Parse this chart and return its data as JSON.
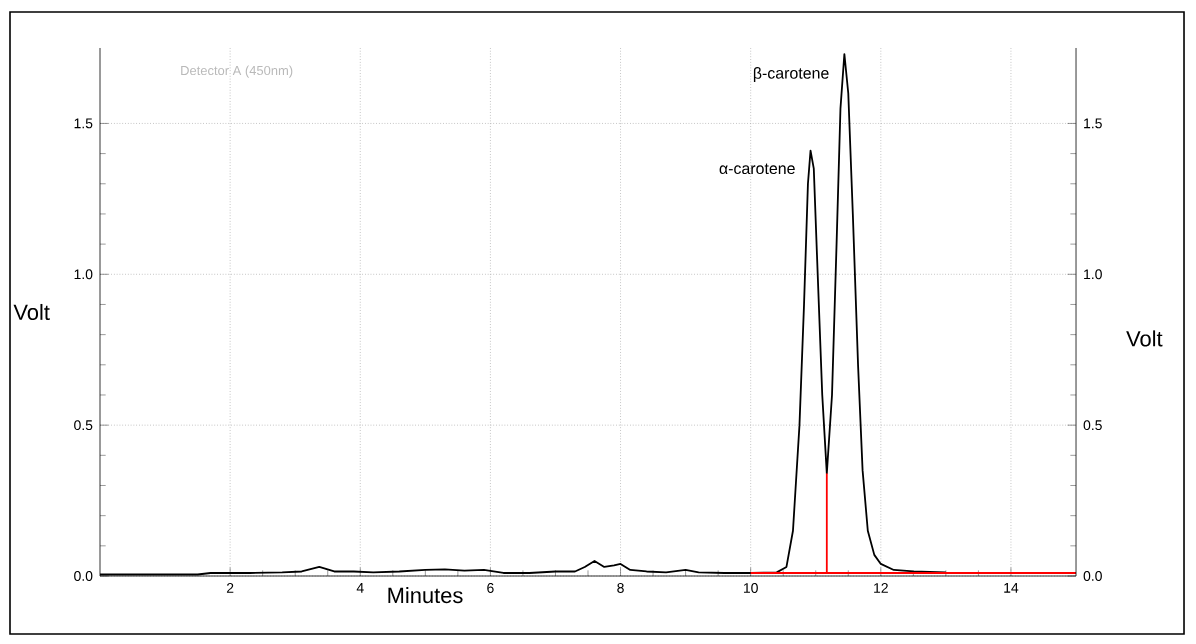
{
  "chart_data": {
    "type": "line",
    "xlabel": "Minutes",
    "ylabel": "Volt",
    "y2label": "Volt",
    "annotations": [
      "Detector A (450nm)",
      {
        "text": "α-carotene",
        "x": 10.92,
        "y": 1.41
      },
      {
        "text": "β-carotene",
        "x": 11.44,
        "y": 1.73
      }
    ],
    "xlim": [
      0,
      15
    ],
    "xticks": [
      2,
      4,
      6,
      8,
      10,
      12,
      14
    ],
    "ylim": [
      0,
      1.75
    ],
    "yticks": [
      {
        "value": 0,
        "label": "0.0"
      },
      {
        "value": 0.5,
        "label": "0.5"
      },
      {
        "value": 1,
        "label": "1.0"
      },
      {
        "value": 1.5,
        "label": "1.5"
      }
    ],
    "y2lim": [
      0,
      1.75
    ],
    "y2ticks": [
      {
        "value": 0,
        "label": "0.0"
      },
      {
        "value": 0.5,
        "label": "0.5"
      },
      {
        "value": 1,
        "label": "1.0"
      },
      {
        "value": 1.5,
        "label": "1.5"
      }
    ],
    "grid": true,
    "series": [
      {
        "color": "#000000",
        "x": [
          0,
          0.5,
          1,
          1.5,
          1.7,
          1.9,
          2.3,
          2.8,
          3.1,
          3.37,
          3.6,
          3.9,
          4.2,
          4.6,
          5,
          5.3,
          5.6,
          5.9,
          6.2,
          6.6,
          7,
          7.3,
          7.45,
          7.6,
          7.75,
          7.9,
          8.0,
          8.15,
          8.4,
          8.7,
          9.0,
          9.2,
          9.6,
          10,
          10.4,
          10.55,
          10.65,
          10.75,
          10.82,
          10.88,
          10.92,
          10.97,
          11.03,
          11.1,
          11.17,
          11.25,
          11.32,
          11.38,
          11.44,
          11.5,
          11.57,
          11.65,
          11.72,
          11.8,
          11.9,
          12.0,
          12.2,
          12.5,
          13.0
        ],
        "values": [
          0.005,
          0.005,
          0.005,
          0.005,
          0.01,
          0.01,
          0.01,
          0.012,
          0.015,
          0.03,
          0.015,
          0.015,
          0.012,
          0.015,
          0.02,
          0.022,
          0.018,
          0.02,
          0.01,
          0.01,
          0.015,
          0.015,
          0.03,
          0.05,
          0.03,
          0.035,
          0.04,
          0.02,
          0.015,
          0.012,
          0.02,
          0.012,
          0.01,
          0.01,
          0.012,
          0.03,
          0.15,
          0.5,
          0.9,
          1.3,
          1.41,
          1.35,
          1.0,
          0.6,
          0.34,
          0.6,
          1.1,
          1.55,
          1.73,
          1.6,
          1.2,
          0.7,
          0.35,
          0.15,
          0.07,
          0.04,
          0.02,
          0.015,
          0.012
        ]
      },
      {
        "color": "#ff0000",
        "x": [
          10.0,
          15.0
        ],
        "values": [
          0.01,
          0.01
        ]
      },
      {
        "color": "#ff0000",
        "x": [
          11.17,
          11.17
        ],
        "values": [
          0.01,
          0.34
        ]
      }
    ]
  }
}
